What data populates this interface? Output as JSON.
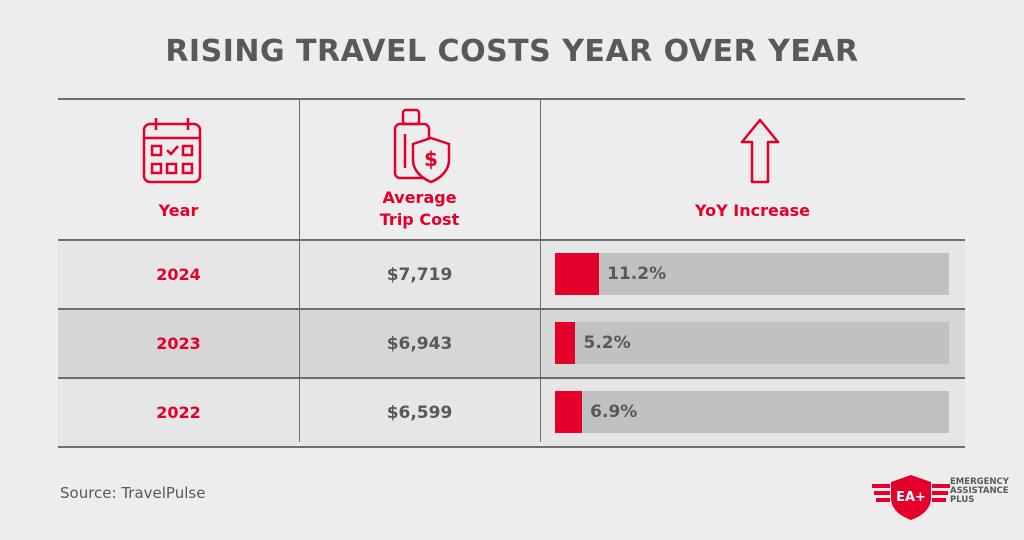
{
  "title": "RISING TRAVEL COSTS YEAR OVER YEAR",
  "headers": {
    "year": "Year",
    "cost_line1": "Average",
    "cost_line2": "Trip Cost",
    "increase": "YoY Increase"
  },
  "icons": {
    "year": "calendar-icon",
    "cost": "luggage-dollar-shield-icon",
    "increase": "arrow-up-icon"
  },
  "colors": {
    "accent": "#e4002b",
    "bar_track": "#c0c1c3",
    "text": "#58595b"
  },
  "chart_data": {
    "type": "table",
    "columns": [
      "Year",
      "Average Trip Cost",
      "YoY Increase"
    ],
    "rows": [
      {
        "year": "2024",
        "cost": "$7,719",
        "increase_label": "11.2%",
        "increase": 11.2
      },
      {
        "year": "2023",
        "cost": "$6,943",
        "increase_label": "5.2%",
        "increase": 5.2
      },
      {
        "year": "2022",
        "cost": "$6,599",
        "increase_label": "6.9%",
        "increase": 6.9
      }
    ],
    "bar_scale_max": 100
  },
  "source": "Source: TravelPulse",
  "logo": {
    "mark": "EA+",
    "line1": "EMERGENCY",
    "line2": "ASSISTANCE",
    "line3": "PLUS"
  }
}
